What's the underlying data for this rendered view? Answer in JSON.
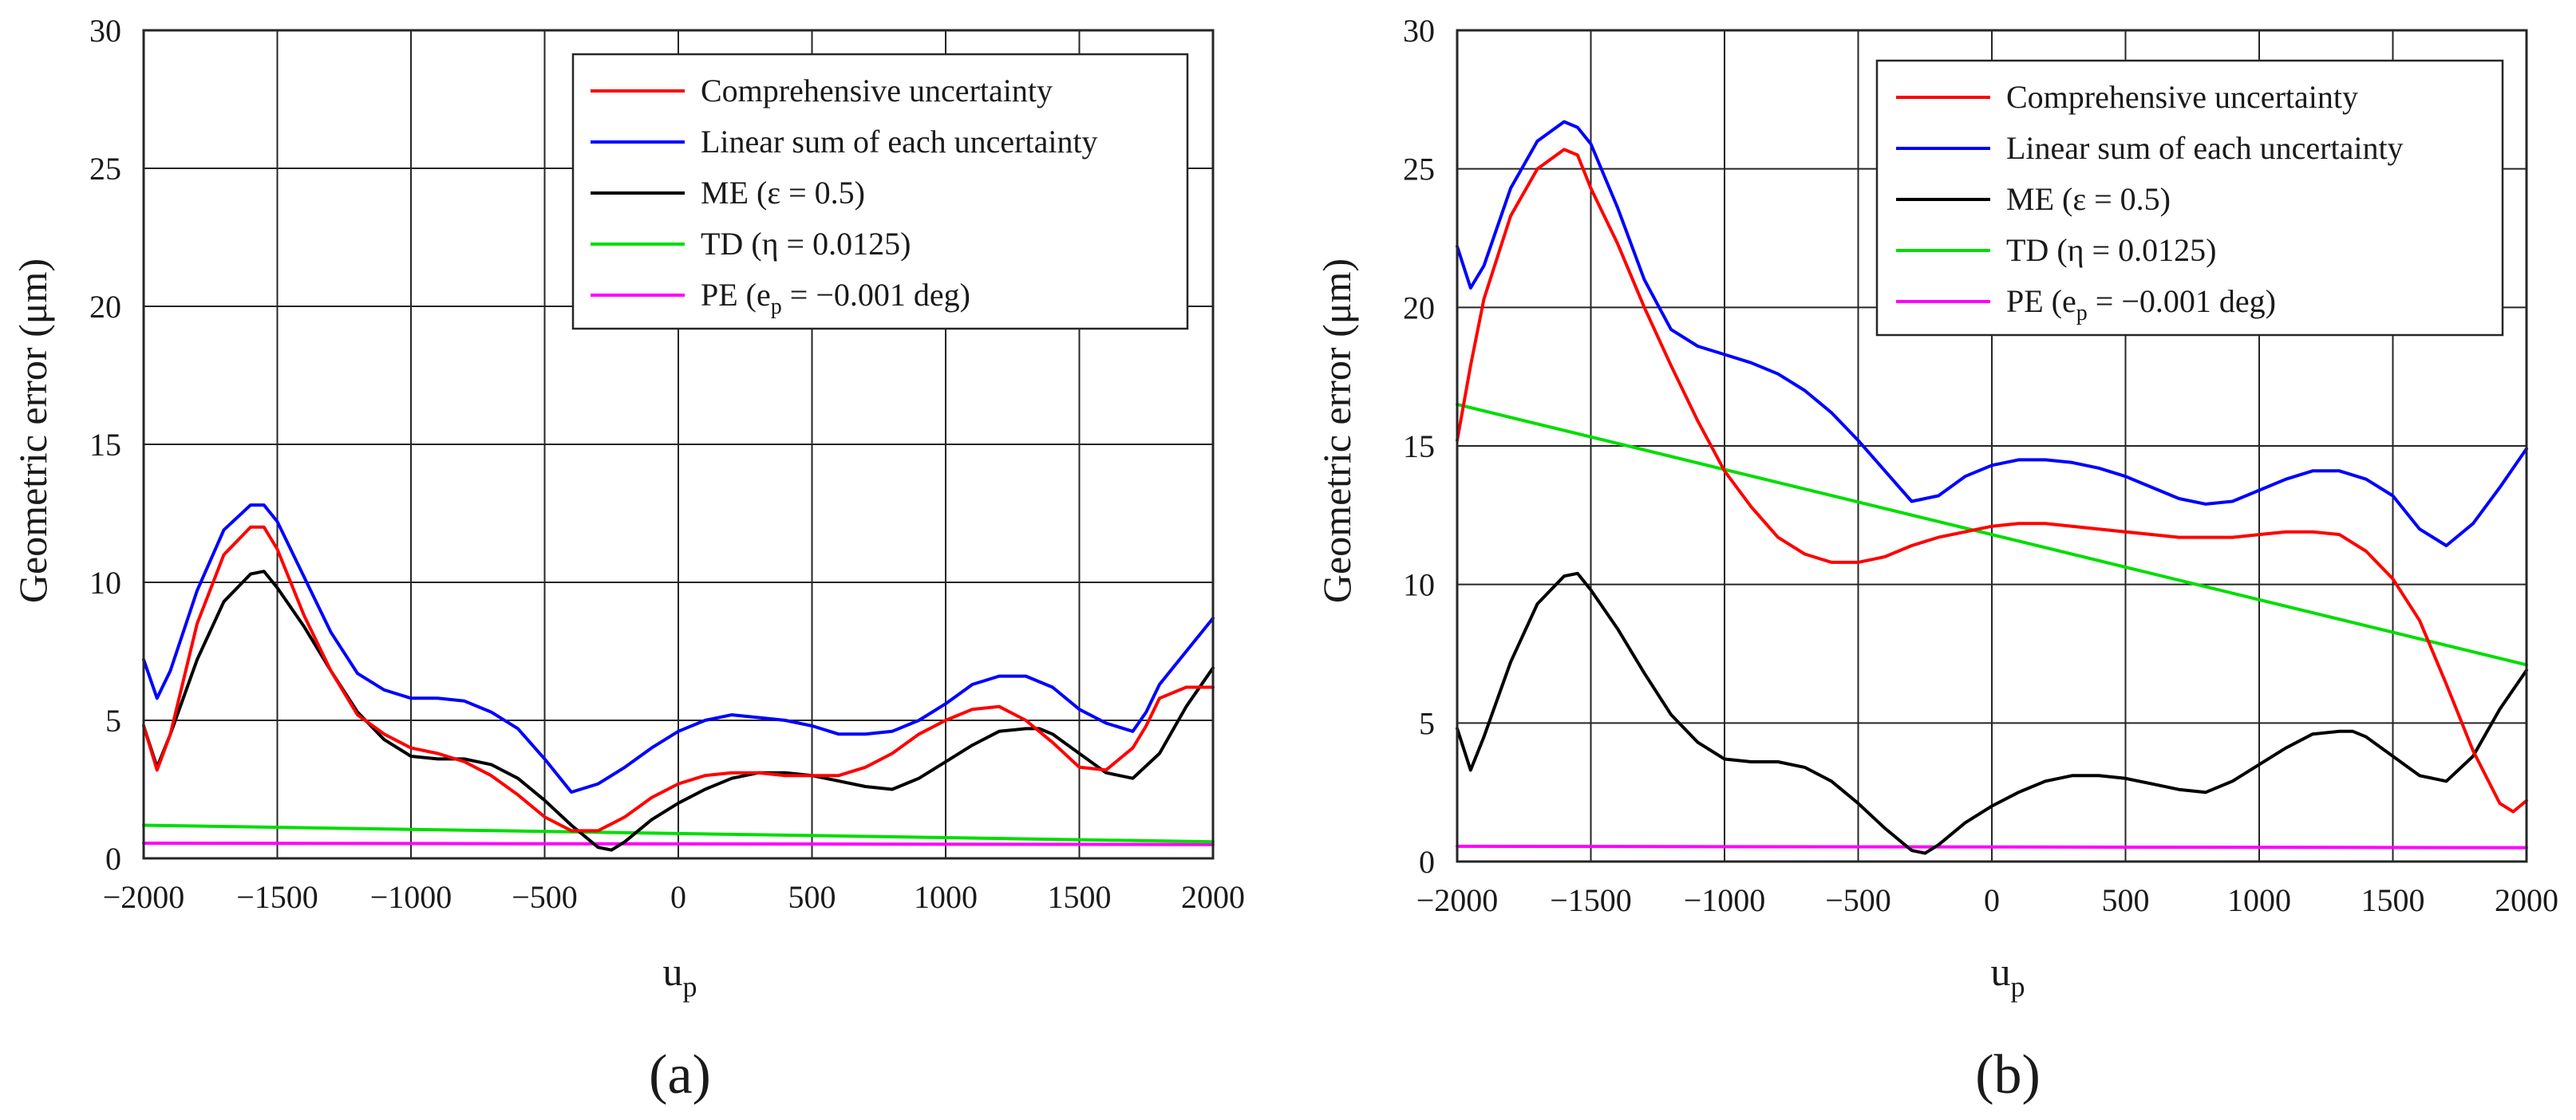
{
  "chart_data": [
    {
      "panel": "a",
      "caption": "(a)",
      "type": "line",
      "xlabel": "u",
      "xlabel_sub": "p",
      "ylabel": "Geometric error (μm)",
      "xlim": [
        -2000,
        2000
      ],
      "ylim": [
        0,
        30
      ],
      "xticks": [
        -2000,
        -1500,
        -1000,
        -500,
        0,
        500,
        1000,
        1500,
        2000
      ],
      "xtick_labels": [
        "−2000",
        "−1500",
        "−1000",
        "−500",
        "0",
        "500",
        "1000",
        "1500",
        "2000"
      ],
      "yticks": [
        0,
        5,
        10,
        15,
        20,
        25,
        30
      ],
      "ytick_labels": [
        "0",
        "5",
        "10",
        "15",
        "20",
        "25",
        "30"
      ],
      "grid": true,
      "legend_position": "top-right",
      "series": [
        {
          "name": "Comprehensive uncertainty",
          "color": "#ff0000",
          "x": [
            -2000,
            -1950,
            -1900,
            -1800,
            -1700,
            -1600,
            -1550,
            -1500,
            -1400,
            -1300,
            -1200,
            -1100,
            -1000,
            -900,
            -800,
            -700,
            -600,
            -500,
            -400,
            -300,
            -200,
            -100,
            0,
            100,
            200,
            300,
            400,
            500,
            600,
            700,
            800,
            900,
            1000,
            1100,
            1200,
            1300,
            1400,
            1500,
            1600,
            1700,
            1750,
            1800,
            1900,
            2000
          ],
          "values": [
            4.8,
            3.2,
            4.5,
            8.5,
            11.0,
            12.0,
            12.0,
            11.2,
            8.8,
            6.8,
            5.2,
            4.5,
            4.0,
            3.8,
            3.5,
            3.0,
            2.3,
            1.5,
            1.0,
            1.0,
            1.5,
            2.2,
            2.7,
            3.0,
            3.1,
            3.1,
            3.0,
            3.0,
            3.0,
            3.3,
            3.8,
            4.5,
            5.0,
            5.4,
            5.5,
            5.0,
            4.2,
            3.3,
            3.2,
            4.0,
            4.8,
            5.8,
            6.2,
            6.2
          ]
        },
        {
          "name": "Linear sum of each uncertainty",
          "color": "#0000ff",
          "x": [
            -2000,
            -1950,
            -1900,
            -1800,
            -1700,
            -1600,
            -1550,
            -1500,
            -1400,
            -1300,
            -1200,
            -1100,
            -1000,
            -900,
            -800,
            -700,
            -600,
            -500,
            -400,
            -300,
            -200,
            -100,
            0,
            100,
            200,
            300,
            400,
            500,
            600,
            700,
            800,
            900,
            1000,
            1100,
            1200,
            1300,
            1400,
            1500,
            1600,
            1700,
            1750,
            1800,
            1900,
            2000
          ],
          "values": [
            7.2,
            5.8,
            6.8,
            9.7,
            11.9,
            12.8,
            12.8,
            12.2,
            10.2,
            8.2,
            6.7,
            6.1,
            5.8,
            5.8,
            5.7,
            5.3,
            4.7,
            3.6,
            2.4,
            2.7,
            3.3,
            4.0,
            4.6,
            5.0,
            5.2,
            5.1,
            5.0,
            4.8,
            4.5,
            4.5,
            4.6,
            5.0,
            5.6,
            6.3,
            6.6,
            6.6,
            6.2,
            5.4,
            4.9,
            4.6,
            5.3,
            6.3,
            7.5,
            8.7
          ]
        },
        {
          "name": "ME (ε = 0.5)",
          "color": "#000000",
          "x": [
            -2000,
            -1950,
            -1900,
            -1800,
            -1700,
            -1600,
            -1550,
            -1500,
            -1400,
            -1300,
            -1200,
            -1100,
            -1000,
            -900,
            -800,
            -700,
            -600,
            -500,
            -400,
            -300,
            -250,
            -200,
            -100,
            0,
            100,
            200,
            300,
            400,
            500,
            600,
            700,
            800,
            900,
            1000,
            1100,
            1200,
            1300,
            1350,
            1400,
            1500,
            1600,
            1700,
            1800,
            1900,
            2000
          ],
          "values": [
            4.8,
            3.3,
            4.5,
            7.2,
            9.3,
            10.3,
            10.4,
            9.8,
            8.4,
            6.8,
            5.3,
            4.3,
            3.7,
            3.6,
            3.6,
            3.4,
            2.9,
            2.1,
            1.2,
            0.4,
            0.3,
            0.6,
            1.4,
            2.0,
            2.5,
            2.9,
            3.1,
            3.1,
            3.0,
            2.8,
            2.6,
            2.5,
            2.9,
            3.5,
            4.1,
            4.6,
            4.7,
            4.7,
            4.5,
            3.8,
            3.1,
            2.9,
            3.8,
            5.5,
            6.9
          ]
        },
        {
          "name": "TD (η = 0.0125)",
          "color": "#00dd00",
          "x": [
            -2000,
            2000
          ],
          "values": [
            1.2,
            0.6
          ]
        },
        {
          "name": "PE (e_p = −0.001 deg)",
          "color": "#ff00ff",
          "x": [
            -2000,
            2000
          ],
          "values": [
            0.55,
            0.5
          ]
        }
      ]
    },
    {
      "panel": "b",
      "caption": "(b)",
      "type": "line",
      "xlabel": "u",
      "xlabel_sub": "p",
      "ylabel": "Geometric error (μm)",
      "xlim": [
        -2000,
        2000
      ],
      "ylim": [
        0,
        30
      ],
      "xticks": [
        -2000,
        -1500,
        -1000,
        -500,
        0,
        500,
        1000,
        1500,
        2000
      ],
      "xtick_labels": [
        "−2000",
        "−1500",
        "−1000",
        "−500",
        "0",
        "500",
        "1000",
        "1500",
        "2000"
      ],
      "yticks": [
        0,
        5,
        10,
        15,
        20,
        25,
        30
      ],
      "ytick_labels": [
        "0",
        "5",
        "10",
        "15",
        "20",
        "25",
        "30"
      ],
      "grid": true,
      "legend_position": "top-right",
      "series": [
        {
          "name": "Comprehensive uncertainty",
          "color": "#ff0000",
          "x": [
            -2000,
            -1950,
            -1900,
            -1800,
            -1700,
            -1600,
            -1550,
            -1500,
            -1400,
            -1300,
            -1200,
            -1100,
            -1000,
            -900,
            -800,
            -700,
            -600,
            -500,
            -400,
            -300,
            -200,
            -100,
            0,
            100,
            200,
            300,
            400,
            500,
            600,
            700,
            800,
            900,
            1000,
            1100,
            1200,
            1300,
            1400,
            1500,
            1600,
            1700,
            1800,
            1900,
            1950,
            2000
          ],
          "values": [
            15.2,
            17.9,
            20.3,
            23.3,
            25.0,
            25.7,
            25.5,
            24.3,
            22.3,
            20.0,
            17.9,
            15.9,
            14.1,
            12.8,
            11.7,
            11.1,
            10.8,
            10.8,
            11.0,
            11.4,
            11.7,
            11.9,
            12.1,
            12.2,
            12.2,
            12.1,
            12.0,
            11.9,
            11.8,
            11.7,
            11.7,
            11.7,
            11.8,
            11.9,
            11.9,
            11.8,
            11.2,
            10.2,
            8.7,
            6.4,
            4.0,
            2.1,
            1.8,
            2.2
          ]
        },
        {
          "name": "Linear sum of each uncertainty",
          "color": "#0000ff",
          "x": [
            -2000,
            -1950,
            -1900,
            -1800,
            -1700,
            -1600,
            -1550,
            -1500,
            -1400,
            -1300,
            -1200,
            -1100,
            -1000,
            -900,
            -800,
            -700,
            -600,
            -500,
            -400,
            -300,
            -250,
            -200,
            -100,
            0,
            100,
            200,
            300,
            400,
            500,
            600,
            700,
            800,
            900,
            1000,
            1100,
            1200,
            1300,
            1400,
            1500,
            1600,
            1700,
            1800,
            1900,
            2000
          ],
          "values": [
            22.2,
            20.7,
            21.5,
            24.3,
            26.0,
            26.7,
            26.5,
            25.9,
            23.6,
            21.0,
            19.2,
            18.6,
            18.3,
            18.0,
            17.6,
            17.0,
            16.2,
            15.2,
            14.1,
            13.0,
            13.1,
            13.2,
            13.9,
            14.3,
            14.5,
            14.5,
            14.4,
            14.2,
            13.9,
            13.5,
            13.1,
            12.9,
            13.0,
            13.4,
            13.8,
            14.1,
            14.1,
            13.8,
            13.2,
            12.0,
            11.4,
            12.2,
            13.5,
            14.9
          ]
        },
        {
          "name": "ME (ε = 0.5)",
          "color": "#000000",
          "x": [
            -2000,
            -1950,
            -1900,
            -1800,
            -1700,
            -1600,
            -1550,
            -1500,
            -1400,
            -1300,
            -1200,
            -1100,
            -1000,
            -900,
            -800,
            -700,
            -600,
            -500,
            -400,
            -300,
            -250,
            -200,
            -100,
            0,
            100,
            200,
            300,
            400,
            500,
            600,
            700,
            800,
            900,
            1000,
            1100,
            1200,
            1300,
            1350,
            1400,
            1500,
            1600,
            1700,
            1800,
            1900,
            2000
          ],
          "values": [
            4.8,
            3.3,
            4.5,
            7.2,
            9.3,
            10.3,
            10.4,
            9.8,
            8.4,
            6.8,
            5.3,
            4.3,
            3.7,
            3.6,
            3.6,
            3.4,
            2.9,
            2.1,
            1.2,
            0.4,
            0.3,
            0.6,
            1.4,
            2.0,
            2.5,
            2.9,
            3.1,
            3.1,
            3.0,
            2.8,
            2.6,
            2.5,
            2.9,
            3.5,
            4.1,
            4.6,
            4.7,
            4.7,
            4.5,
            3.8,
            3.1,
            2.9,
            3.8,
            5.5,
            6.9
          ]
        },
        {
          "name": "TD (η = 0.0125)",
          "color": "#00dd00",
          "x": [
            -2000,
            2000
          ],
          "values": [
            16.5,
            7.1
          ]
        },
        {
          "name": "PE (e_p = −0.001 deg)",
          "color": "#ff00ff",
          "x": [
            -2000,
            2000
          ],
          "values": [
            0.55,
            0.5
          ]
        }
      ]
    }
  ]
}
